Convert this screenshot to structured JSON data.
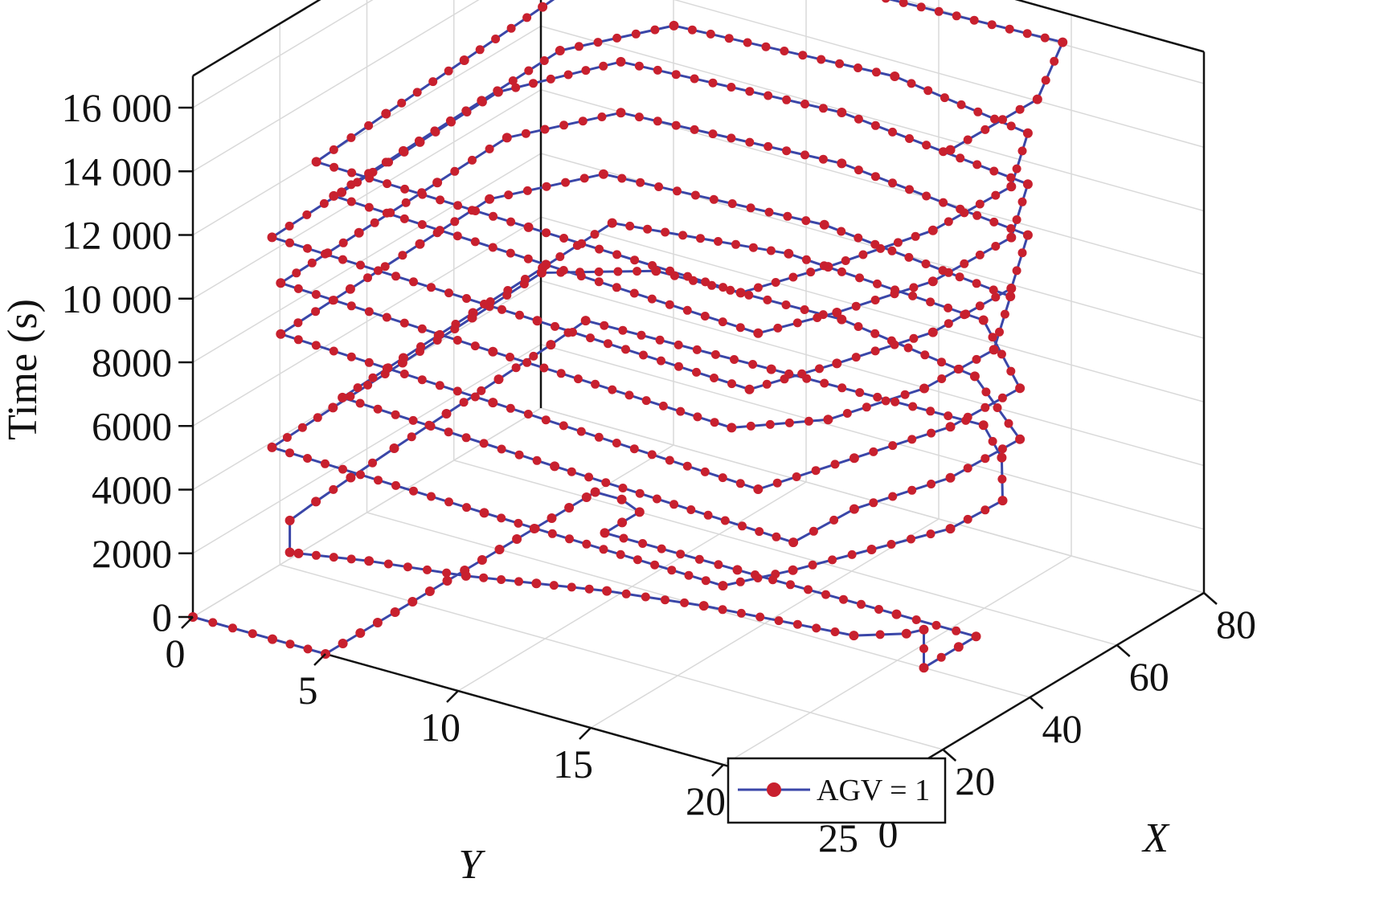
{
  "chart_data": {
    "type": "line",
    "subtype": "3d-line-with-markers",
    "title": "",
    "xlabel": "X",
    "ylabel": "Y",
    "zlabel": "Time (s)",
    "xlim": [
      0,
      80
    ],
    "ylim": [
      0,
      25
    ],
    "zlim": [
      0,
      17000
    ],
    "x_ticks": [
      "0",
      "20",
      "40",
      "60",
      "80"
    ],
    "y_ticks": [
      "0",
      "5",
      "10",
      "15",
      "20",
      "25"
    ],
    "z_ticks": [
      "0",
      "2000",
      "4000",
      "6000",
      "8000",
      "10 000",
      "12 000",
      "14 000",
      "16 000"
    ],
    "grid": true,
    "legend_position": "bottom-center",
    "colors": {
      "line": "#3a46a8",
      "marker": "#c8202e",
      "axis": "#111111",
      "grid": "#d9d9d9"
    },
    "series": [
      {
        "name": "AGV = 1",
        "line_color": "#3a46a8",
        "marker_color": "#c8202e",
        "points_xyz": [
          [
            0,
            0,
            0
          ],
          [
            0,
            3,
            0
          ],
          [
            0,
            5,
            0
          ],
          [
            4,
            5,
            0
          ],
          [
            8,
            5,
            0
          ],
          [
            12,
            5,
            0
          ],
          [
            16,
            5,
            0
          ],
          [
            20,
            5,
            0
          ],
          [
            24,
            5,
            0
          ],
          [
            28,
            5,
            0
          ],
          [
            32,
            5,
            0
          ],
          [
            36,
            5,
            0
          ],
          [
            40,
            5,
            0
          ],
          [
            44,
            5,
            0
          ],
          [
            48,
            5,
            0
          ],
          [
            52,
            5,
            0
          ],
          [
            56,
            5,
            0
          ],
          [
            60,
            5,
            0
          ],
          [
            62,
            5,
            0
          ],
          [
            62,
            6,
            0
          ],
          [
            60,
            7,
            0
          ],
          [
            56,
            7,
            0
          ],
          [
            52,
            7,
            0
          ],
          [
            52,
            12,
            0
          ],
          [
            52,
            18,
            0
          ],
          [
            52,
            21,
            0
          ],
          [
            48,
            21,
            0
          ],
          [
            40,
            21,
            0
          ],
          [
            40,
            21,
            1200
          ],
          [
            36,
            21,
            1400
          ],
          [
            30,
            20,
            1600
          ],
          [
            26,
            15,
            1700
          ],
          [
            22,
            12,
            1800
          ],
          [
            18,
            10,
            1900
          ],
          [
            14,
            8,
            2000
          ],
          [
            10,
            5,
            2100
          ],
          [
            6,
            3,
            2200
          ],
          [
            4,
            3,
            2400
          ],
          [
            4,
            3,
            3400
          ],
          [
            10,
            3,
            3500
          ],
          [
            18,
            3,
            3600
          ],
          [
            28,
            3,
            3700
          ],
          [
            40,
            3,
            3800
          ],
          [
            52,
            3,
            3900
          ],
          [
            64,
            3,
            4000
          ],
          [
            72,
            3,
            4100
          ],
          [
            72,
            10,
            4200
          ],
          [
            72,
            18,
            4300
          ],
          [
            64,
            20,
            4400
          ],
          [
            52,
            22,
            4500
          ],
          [
            40,
            22,
            4600
          ],
          [
            28,
            21,
            4700
          ],
          [
            16,
            20,
            4800
          ],
          [
            6,
            19,
            4900
          ],
          [
            6,
            10,
            5100
          ],
          [
            6,
            2,
            5300
          ],
          [
            20,
            2,
            5400
          ],
          [
            36,
            2,
            5500
          ],
          [
            52,
            2,
            5600
          ],
          [
            68,
            2,
            5700
          ],
          [
            76,
            5,
            5800
          ],
          [
            76,
            12,
            5900
          ],
          [
            70,
            18,
            6000
          ],
          [
            56,
            22,
            6100
          ],
          [
            40,
            22,
            6200
          ],
          [
            24,
            21,
            6300
          ],
          [
            10,
            21,
            6400
          ],
          [
            10,
            12,
            6700
          ],
          [
            10,
            4,
            7000
          ],
          [
            24,
            4,
            7100
          ],
          [
            40,
            4,
            7200
          ],
          [
            56,
            4,
            7300
          ],
          [
            72,
            4,
            7400
          ],
          [
            76,
            10,
            7500
          ],
          [
            72,
            18,
            7600
          ],
          [
            56,
            22,
            7700
          ],
          [
            40,
            22,
            7800
          ],
          [
            24,
            21,
            7900
          ],
          [
            8,
            20,
            8000
          ],
          [
            8,
            10,
            8400
          ],
          [
            8,
            2,
            8700
          ],
          [
            24,
            2,
            8800
          ],
          [
            40,
            2,
            8900
          ],
          [
            56,
            2,
            9000
          ],
          [
            70,
            4,
            9100
          ],
          [
            72,
            12,
            9200
          ],
          [
            66,
            20,
            9300
          ],
          [
            50,
            22,
            9400
          ],
          [
            34,
            22,
            9500
          ],
          [
            18,
            21,
            9600
          ],
          [
            8,
            19,
            9700
          ],
          [
            8,
            10,
            10000
          ],
          [
            8,
            2,
            10300
          ],
          [
            26,
            2,
            10400
          ],
          [
            44,
            2,
            10500
          ],
          [
            60,
            2,
            10600
          ],
          [
            74,
            4,
            10700
          ],
          [
            76,
            12,
            10800
          ],
          [
            70,
            20,
            10900
          ],
          [
            54,
            22,
            11000
          ],
          [
            36,
            22,
            11100
          ],
          [
            20,
            21,
            11200
          ],
          [
            6,
            20,
            11300
          ],
          [
            6,
            12,
            11600
          ],
          [
            6,
            2,
            11900
          ],
          [
            22,
            2,
            12000
          ],
          [
            40,
            2,
            12100
          ],
          [
            58,
            2,
            12200
          ],
          [
            74,
            4,
            12300
          ],
          [
            76,
            12,
            12400
          ],
          [
            70,
            20,
            12500
          ],
          [
            54,
            22,
            12600
          ],
          [
            36,
            22,
            12700
          ],
          [
            20,
            21,
            12800
          ],
          [
            8,
            20,
            12900
          ],
          [
            8,
            12,
            13200
          ],
          [
            8,
            4,
            13500
          ],
          [
            24,
            4,
            13600
          ],
          [
            42,
            4,
            13700
          ],
          [
            60,
            4,
            13800
          ],
          [
            74,
            6,
            13900
          ],
          [
            76,
            14,
            14000
          ],
          [
            70,
            20,
            14100
          ],
          [
            54,
            22,
            14200
          ],
          [
            36,
            22,
            14300
          ],
          [
            18,
            21,
            14400
          ],
          [
            4,
            20,
            14500
          ],
          [
            4,
            12,
            14700
          ],
          [
            4,
            4,
            14900
          ],
          [
            20,
            4,
            15100
          ],
          [
            38,
            4,
            15300
          ],
          [
            56,
            4,
            15500
          ],
          [
            72,
            4,
            15700
          ],
          [
            78,
            4,
            15900
          ],
          [
            78,
            12,
            16100
          ],
          [
            78,
            20,
            16300
          ],
          [
            60,
            22,
            16450
          ],
          [
            40,
            22,
            16500
          ]
        ]
      }
    ]
  },
  "legend": {
    "label": "AGV = 1"
  }
}
